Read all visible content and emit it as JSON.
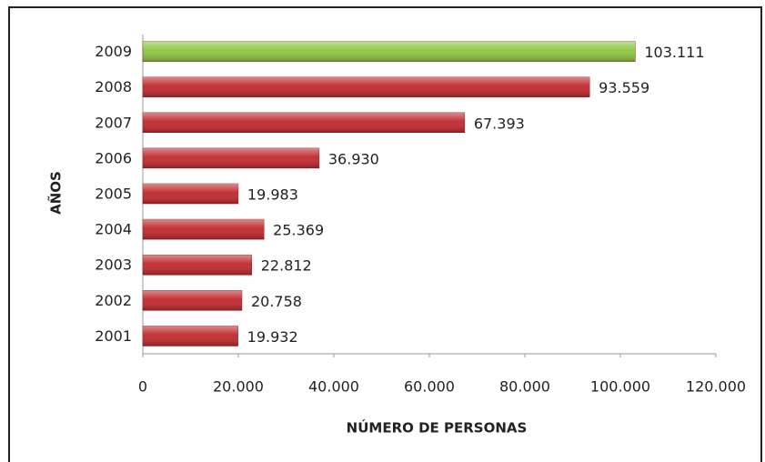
{
  "chart_data": {
    "type": "bar",
    "orientation": "horizontal",
    "x_label": "NÚMERO DE PERSONAS",
    "y_label": "AÑOS",
    "categories": [
      "2009",
      "2008",
      "2007",
      "2006",
      "2005",
      "2004",
      "2003",
      "2002",
      "2001"
    ],
    "values": [
      103111,
      93559,
      67393,
      36930,
      19983,
      25369,
      22812,
      20758,
      19932
    ],
    "value_labels": [
      "103.111",
      "93.559",
      "67.393",
      "36.930",
      "19.983",
      "25.369",
      "22.812",
      "20.758",
      "19.932"
    ],
    "colors": [
      "#8cc63f",
      "#c0282d",
      "#c0282d",
      "#c0282d",
      "#c0282d",
      "#c0282d",
      "#c0282d",
      "#c0282d",
      "#c0282d"
    ],
    "xlim": [
      0,
      120000
    ],
    "xticks": [
      0,
      {
        "value": 20000,
        "label": "20.000"
      },
      {
        "value": 40000,
        "label": "40.000"
      },
      {
        "value": 60000,
        "label": "60.000"
      },
      {
        "value": 80000,
        "label": "80.000"
      },
      {
        "value": 100000,
        "label": "100.000"
      },
      {
        "value": 120000,
        "label": "120.000"
      }
    ],
    "grid": false
  }
}
